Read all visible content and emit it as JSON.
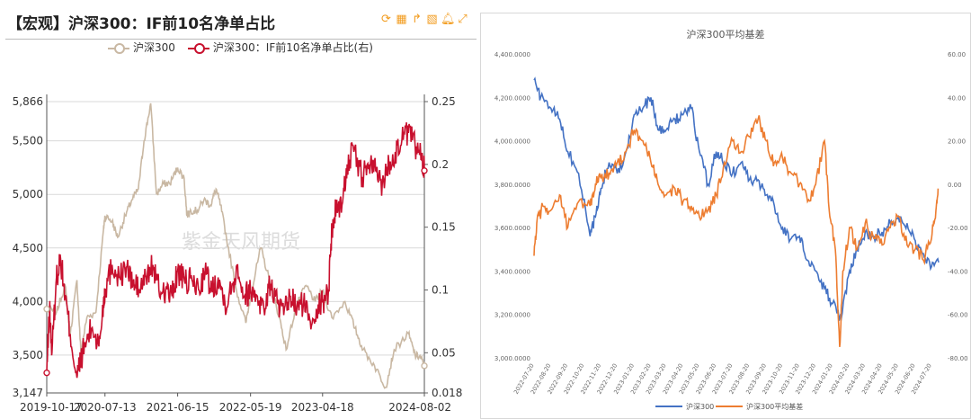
{
  "left": {
    "title": "【宏观】沪深300：IF前10名净单占比",
    "tools": [
      "refresh-icon",
      "table-icon",
      "share-icon",
      "image-icon",
      "bell-icon",
      "expand-icon"
    ],
    "watermark": "紫金天风期货",
    "colors": {
      "index": "#c9b8a3",
      "ratio": "#c8102e",
      "grid": "#d9d9d9"
    }
  },
  "right": {
    "colors": {
      "index": "#4472c4",
      "basis": "#ed7d31"
    }
  },
  "chart_data": [
    {
      "type": "line",
      "title": "【宏观】沪深300：IF前10名净单占比",
      "x_ticks": [
        "2019-10-17",
        "2020-07-13",
        "2021-06-15",
        "2022-05-19",
        "2023-04-18",
        "2024-08-02"
      ],
      "x_range": [
        "2019-10-17",
        "2024-08-02"
      ],
      "y_left": {
        "min": 3147,
        "max": 5866,
        "ticks": [
          "3,147",
          "3,500",
          "4,000",
          "4,500",
          "5,000",
          "5,500",
          "5,866"
        ]
      },
      "y_right": {
        "min": 0.018,
        "max": 0.25,
        "ticks": [
          "0.018",
          "0.05",
          "0.1",
          "0.15",
          "0.2",
          "0.25"
        ]
      },
      "legend_position": "top",
      "series": [
        {
          "name": "沪深300",
          "axis": "left",
          "points": [
            [
              "2019-10-17",
              3930
            ],
            [
              "2019-12-01",
              3900
            ],
            [
              "2020-01-10",
              4150
            ],
            [
              "2020-02-03",
              3690
            ],
            [
              "2020-03-05",
              4200
            ],
            [
              "2020-03-23",
              3530
            ],
            [
              "2020-04-20",
              3850
            ],
            [
              "2020-06-01",
              3900
            ],
            [
              "2020-07-06",
              4670
            ],
            [
              "2020-07-13",
              4800
            ],
            [
              "2020-08-15",
              4750
            ],
            [
              "2020-09-10",
              4600
            ],
            [
              "2020-10-15",
              4800
            ],
            [
              "2020-11-15",
              4950
            ],
            [
              "2020-12-15",
              5050
            ],
            [
              "2021-01-10",
              5500
            ],
            [
              "2021-02-10",
              5850
            ],
            [
              "2021-03-09",
              5000
            ],
            [
              "2021-04-10",
              5100
            ],
            [
              "2021-05-10",
              5100
            ],
            [
              "2021-06-15",
              5250
            ],
            [
              "2021-07-15",
              5150
            ],
            [
              "2021-07-28",
              4800
            ],
            [
              "2021-08-15",
              4850
            ],
            [
              "2021-09-15",
              4850
            ],
            [
              "2021-10-15",
              4950
            ],
            [
              "2021-11-15",
              4900
            ],
            [
              "2021-12-10",
              5050
            ],
            [
              "2021-12-31",
              4900
            ],
            [
              "2022-01-27",
              4600
            ],
            [
              "2022-03-15",
              4100
            ],
            [
              "2022-04-27",
              3800
            ],
            [
              "2022-05-19",
              4050
            ],
            [
              "2022-07-05",
              4500
            ],
            [
              "2022-08-15",
              4200
            ],
            [
              "2022-09-30",
              3850
            ],
            [
              "2022-10-31",
              3550
            ],
            [
              "2022-12-15",
              3950
            ],
            [
              "2023-01-31",
              4150
            ],
            [
              "2023-03-15",
              4000
            ],
            [
              "2023-04-18",
              4100
            ],
            [
              "2023-05-31",
              3850
            ],
            [
              "2023-07-31",
              4000
            ],
            [
              "2023-09-15",
              3750
            ],
            [
              "2023-10-23",
              3550
            ],
            [
              "2023-12-15",
              3400
            ],
            [
              "2024-02-05",
              3200
            ],
            [
              "2024-03-15",
              3550
            ],
            [
              "2024-05-20",
              3700
            ],
            [
              "2024-06-20",
              3500
            ],
            [
              "2024-07-15",
              3480
            ],
            [
              "2024-08-02",
              3400
            ]
          ]
        },
        {
          "name": "沪深300：IF前10名净单占比(右)",
          "axis": "right",
          "points": [
            [
              "2019-10-17",
              0.034
            ],
            [
              "2019-10-30",
              0.085
            ],
            [
              "2019-11-10",
              0.05
            ],
            [
              "2019-12-01",
              0.11
            ],
            [
              "2019-12-20",
              0.125
            ],
            [
              "2020-01-10",
              0.095
            ],
            [
              "2020-02-03",
              0.065
            ],
            [
              "2020-03-05",
              0.03
            ],
            [
              "2020-03-23",
              0.045
            ],
            [
              "2020-04-20",
              0.06
            ],
            [
              "2020-05-15",
              0.07
            ],
            [
              "2020-06-15",
              0.055
            ],
            [
              "2020-07-06",
              0.09
            ],
            [
              "2020-07-13",
              0.1
            ],
            [
              "2020-08-15",
              0.12
            ],
            [
              "2020-09-20",
              0.11
            ],
            [
              "2020-10-20",
              0.118
            ],
            [
              "2020-11-20",
              0.105
            ],
            [
              "2020-12-20",
              0.1
            ],
            [
              "2021-01-20",
              0.11
            ],
            [
              "2021-02-20",
              0.12
            ],
            [
              "2021-03-20",
              0.1
            ],
            [
              "2021-04-20",
              0.1
            ],
            [
              "2021-05-20",
              0.095
            ],
            [
              "2021-06-15",
              0.115
            ],
            [
              "2021-07-20",
              0.105
            ],
            [
              "2021-08-20",
              0.108
            ],
            [
              "2021-09-20",
              0.1
            ],
            [
              "2021-10-20",
              0.115
            ],
            [
              "2021-11-20",
              0.1
            ],
            [
              "2021-12-20",
              0.11
            ],
            [
              "2022-01-20",
              0.09
            ],
            [
              "2022-02-20",
              0.1
            ],
            [
              "2022-03-20",
              0.12
            ],
            [
              "2022-04-20",
              0.095
            ],
            [
              "2022-05-19",
              0.1
            ],
            [
              "2022-06-20",
              0.095
            ],
            [
              "2022-07-20",
              0.085
            ],
            [
              "2022-08-20",
              0.105
            ],
            [
              "2022-09-20",
              0.09
            ],
            [
              "2022-10-20",
              0.08
            ],
            [
              "2022-11-20",
              0.095
            ],
            [
              "2022-12-20",
              0.085
            ],
            [
              "2023-01-20",
              0.09
            ],
            [
              "2023-02-20",
              0.075
            ],
            [
              "2023-03-20",
              0.085
            ],
            [
              "2023-04-18",
              0.09
            ],
            [
              "2023-05-15",
              0.1
            ],
            [
              "2023-06-01",
              0.15
            ],
            [
              "2023-06-20",
              0.165
            ],
            [
              "2023-07-20",
              0.17
            ],
            [
              "2023-08-10",
              0.2
            ],
            [
              "2023-09-10",
              0.21
            ],
            [
              "2023-10-20",
              0.19
            ],
            [
              "2023-11-20",
              0.2
            ],
            [
              "2023-12-20",
              0.195
            ],
            [
              "2024-01-20",
              0.185
            ],
            [
              "2024-02-20",
              0.2
            ],
            [
              "2024-03-20",
              0.21
            ],
            [
              "2024-04-20",
              0.22
            ],
            [
              "2024-05-20",
              0.225
            ],
            [
              "2024-06-20",
              0.215
            ],
            [
              "2024-07-20",
              0.205
            ],
            [
              "2024-08-02",
              0.195
            ]
          ]
        }
      ]
    },
    {
      "type": "line",
      "title": "沪深300平均基差",
      "x_ticks": [
        "2022-07-20",
        "2022-08-20",
        "2022-09-20",
        "2022-10-20",
        "2022-11-20",
        "2022-12-20",
        "2023-01-20",
        "2023-02-20",
        "2023-03-20",
        "2023-04-20",
        "2023-05-20",
        "2023-06-20",
        "2023-07-20",
        "2023-08-20",
        "2023-09-20",
        "2023-10-20",
        "2023-11-20",
        "2023-12-20",
        "2024-01-20",
        "2024-02-20",
        "2024-03-20",
        "2024-04-20",
        "2024-05-20",
        "2024-06-20",
        "2024-07-20"
      ],
      "x_range": [
        "2022-07-20",
        "2024-08-02"
      ],
      "y_left": {
        "min": 3000,
        "max": 4400,
        "ticks": [
          "3,000.0000",
          "3,200.0000",
          "3,400.0000",
          "3,600.0000",
          "3,800.0000",
          "4,000.0000",
          "4,200.0000",
          "4,400.0000"
        ]
      },
      "y_right": {
        "min": -80,
        "max": 60,
        "ticks": [
          "-80.00",
          "-60.00",
          "-40.00",
          "-20.00",
          "0.00",
          "20.00",
          "40.00",
          "60.00"
        ]
      },
      "legend_position": "bottom",
      "series": [
        {
          "name": "沪深300",
          "axis": "left",
          "points": [
            [
              "2022-07-20",
              4280
            ],
            [
              "2022-08-01",
              4200
            ],
            [
              "2022-08-20",
              4150
            ],
            [
              "2022-09-05",
              4100
            ],
            [
              "2022-09-20",
              3950
            ],
            [
              "2022-10-10",
              3850
            ],
            [
              "2022-10-31",
              3560
            ],
            [
              "2022-11-10",
              3650
            ],
            [
              "2022-11-20",
              3780
            ],
            [
              "2022-12-05",
              3900
            ],
            [
              "2022-12-20",
              3850
            ],
            [
              "2023-01-05",
              3950
            ],
            [
              "2023-01-20",
              4120
            ],
            [
              "2023-02-05",
              4150
            ],
            [
              "2023-02-20",
              4200
            ],
            [
              "2023-03-05",
              4050
            ],
            [
              "2023-03-20",
              4050
            ],
            [
              "2023-04-05",
              4100
            ],
            [
              "2023-04-20",
              4120
            ],
            [
              "2023-05-05",
              4150
            ],
            [
              "2023-05-20",
              3950
            ],
            [
              "2023-06-05",
              3800
            ],
            [
              "2023-06-20",
              3950
            ],
            [
              "2023-07-05",
              3900
            ],
            [
              "2023-07-20",
              3850
            ],
            [
              "2023-08-05",
              3900
            ],
            [
              "2023-08-20",
              3820
            ],
            [
              "2023-09-05",
              3820
            ],
            [
              "2023-09-20",
              3750
            ],
            [
              "2023-10-05",
              3700
            ],
            [
              "2023-10-20",
              3600
            ],
            [
              "2023-11-05",
              3550
            ],
            [
              "2023-11-20",
              3560
            ],
            [
              "2023-12-05",
              3450
            ],
            [
              "2023-12-20",
              3400
            ],
            [
              "2024-01-05",
              3320
            ],
            [
              "2024-01-20",
              3250
            ],
            [
              "2024-02-05",
              3180
            ],
            [
              "2024-02-20",
              3400
            ],
            [
              "2024-03-05",
              3500
            ],
            [
              "2024-03-20",
              3580
            ],
            [
              "2024-04-05",
              3560
            ],
            [
              "2024-04-20",
              3580
            ],
            [
              "2024-05-05",
              3620
            ],
            [
              "2024-05-20",
              3650
            ],
            [
              "2024-06-05",
              3620
            ],
            [
              "2024-06-20",
              3540
            ],
            [
              "2024-07-05",
              3480
            ],
            [
              "2024-07-20",
              3420
            ],
            [
              "2024-08-02",
              3440
            ]
          ]
        },
        {
          "name": "沪深300平均基差",
          "axis": "right",
          "points": [
            [
              "2022-07-20",
              -33
            ],
            [
              "2022-07-25",
              -18
            ],
            [
              "2022-08-05",
              -10
            ],
            [
              "2022-08-20",
              -12
            ],
            [
              "2022-09-05",
              -5
            ],
            [
              "2022-09-20",
              -20
            ],
            [
              "2022-10-10",
              -8
            ],
            [
              "2022-10-31",
              -10
            ],
            [
              "2022-11-10",
              0
            ],
            [
              "2022-11-20",
              3
            ],
            [
              "2022-12-05",
              5
            ],
            [
              "2022-12-20",
              10
            ],
            [
              "2023-01-05",
              15
            ],
            [
              "2023-01-20",
              25
            ],
            [
              "2023-02-05",
              20
            ],
            [
              "2023-02-20",
              10
            ],
            [
              "2023-03-05",
              0
            ],
            [
              "2023-03-20",
              -5
            ],
            [
              "2023-04-05",
              -2
            ],
            [
              "2023-04-20",
              -8
            ],
            [
              "2023-05-05",
              -10
            ],
            [
              "2023-05-20",
              -15
            ],
            [
              "2023-06-05",
              -12
            ],
            [
              "2023-06-20",
              -5
            ],
            [
              "2023-07-05",
              10
            ],
            [
              "2023-07-20",
              20
            ],
            [
              "2023-08-05",
              15
            ],
            [
              "2023-08-20",
              22
            ],
            [
              "2023-09-05",
              30
            ],
            [
              "2023-09-20",
              20
            ],
            [
              "2023-10-05",
              10
            ],
            [
              "2023-10-20",
              12
            ],
            [
              "2023-11-05",
              5
            ],
            [
              "2023-11-20",
              0
            ],
            [
              "2023-12-05",
              -8
            ],
            [
              "2023-12-20",
              0
            ],
            [
              "2024-01-05",
              20
            ],
            [
              "2024-01-15",
              -15
            ],
            [
              "2024-01-25",
              -30
            ],
            [
              "2024-02-02",
              -75
            ],
            [
              "2024-02-08",
              -40
            ],
            [
              "2024-02-20",
              -20
            ],
            [
              "2024-03-05",
              -30
            ],
            [
              "2024-03-20",
              -18
            ],
            [
              "2024-04-05",
              -25
            ],
            [
              "2024-04-20",
              -28
            ],
            [
              "2024-05-05",
              -20
            ],
            [
              "2024-05-20",
              -15
            ],
            [
              "2024-06-05",
              -28
            ],
            [
              "2024-06-20",
              -30
            ],
            [
              "2024-07-05",
              -35
            ],
            [
              "2024-07-20",
              -25
            ],
            [
              "2024-07-28",
              -12
            ],
            [
              "2024-08-01",
              -2
            ]
          ]
        }
      ]
    }
  ]
}
